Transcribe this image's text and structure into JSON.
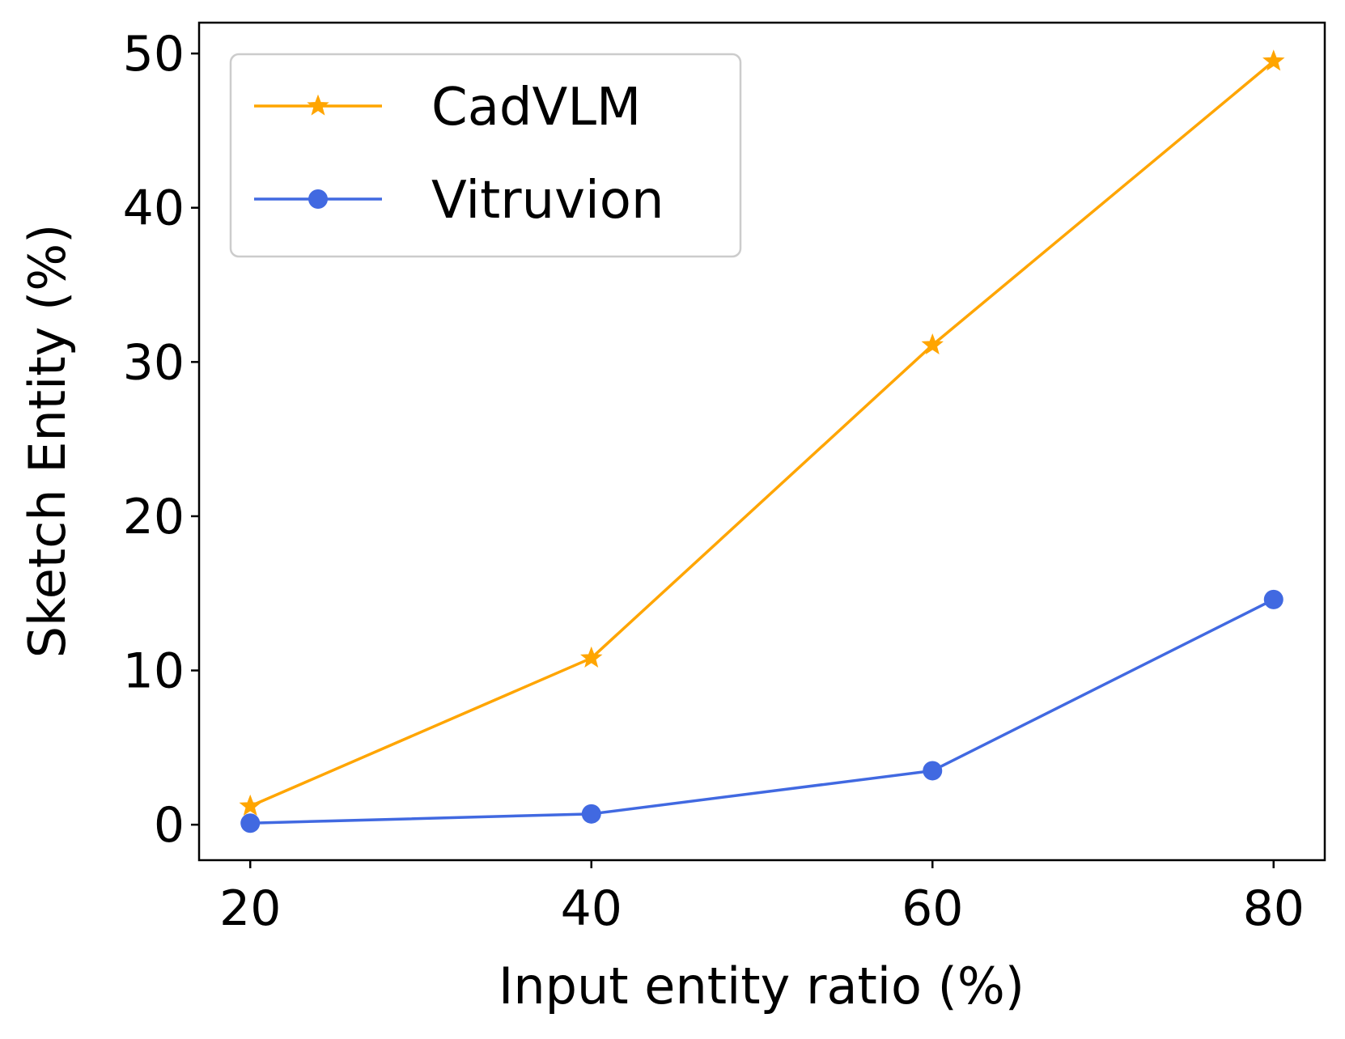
{
  "chart_data": {
    "type": "line",
    "title": "",
    "xlabel": "Input entity ratio (%)",
    "ylabel": "Sketch Entity (%)",
    "x": [
      20,
      40,
      60,
      80
    ],
    "xticks": [
      20,
      40,
      60,
      80
    ],
    "yticks": [
      0,
      10,
      20,
      30,
      40,
      50
    ],
    "xlim": [
      17,
      83
    ],
    "ylim": [
      -2.3,
      52
    ],
    "grid": false,
    "legend_position": "top-left",
    "series": [
      {
        "name": "CadVLM",
        "values": [
          1.2,
          10.8,
          31.1,
          49.5
        ],
        "color": "#FFA500",
        "marker": "star"
      },
      {
        "name": "Vitruvion",
        "values": [
          0.1,
          0.7,
          3.5,
          14.6
        ],
        "color": "#4169E1",
        "marker": "circle"
      }
    ]
  }
}
